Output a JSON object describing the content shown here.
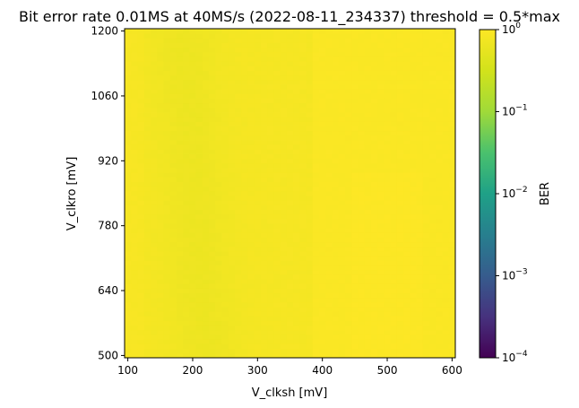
{
  "chart_data": {
    "type": "heatmap",
    "title": "Bit error rate 0.01MS at 40MS/s (2022-08-11_234337) threshold = 0.5*max",
    "xlabel": "V_clksh [mV]",
    "ylabel": "V_clkro [mV]",
    "xlim": [
      95,
      605
    ],
    "ylim": [
      495,
      1205
    ],
    "xticks": [
      100,
      200,
      300,
      400,
      500,
      600
    ],
    "yticks": [
      500,
      640,
      780,
      920,
      1060,
      1200
    ],
    "colorbar": {
      "label": "BER",
      "scale": "log",
      "range": [
        0.0001,
        1
      ],
      "ticks": [
        {
          "value": 1,
          "base": "10",
          "exp": "0"
        },
        {
          "value": 0.1,
          "base": "10",
          "exp": "−1"
        },
        {
          "value": 0.01,
          "base": "10",
          "exp": "−2"
        },
        {
          "value": 0.001,
          "base": "10",
          "exp": "−3"
        },
        {
          "value": 0.0001,
          "base": "10",
          "exp": "−4"
        }
      ],
      "colormap": "viridis"
    },
    "grid": false,
    "grid_shape": {
      "columns": 51,
      "rows": 71,
      "x_step": 10,
      "y_step": 10
    },
    "value_description": "BER between about 0.6 and 1.0 over entire grid; lower (~0.6) band near V_clksh 150-250 mV, higher (~0.9-1.0) near V_clksh 400-600 mV"
  }
}
